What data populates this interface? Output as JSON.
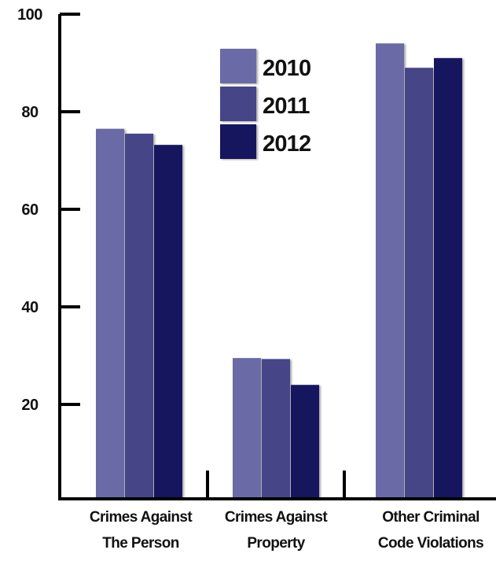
{
  "chart_data": {
    "type": "bar",
    "categories": [
      [
        "Crimes Against",
        "The Person"
      ],
      [
        "Crimes Against",
        "Property"
      ],
      [
        "Other Criminal",
        "Code Violations"
      ]
    ],
    "series": [
      {
        "name": "2010",
        "color": "#6a6aa6",
        "values": [
          76.5,
          29.5,
          94
        ]
      },
      {
        "name": "2011",
        "color": "#444488",
        "values": [
          75.5,
          29.3,
          89
        ]
      },
      {
        "name": "2012",
        "color": "#14145e",
        "values": [
          73.2,
          24,
          91
        ]
      }
    ],
    "yticks": [
      20,
      40,
      60,
      80,
      100
    ],
    "ylim": [
      2,
      100
    ],
    "grid": false,
    "legend_position": "top-center",
    "title": "",
    "xlabel": "",
    "ylabel": ""
  }
}
